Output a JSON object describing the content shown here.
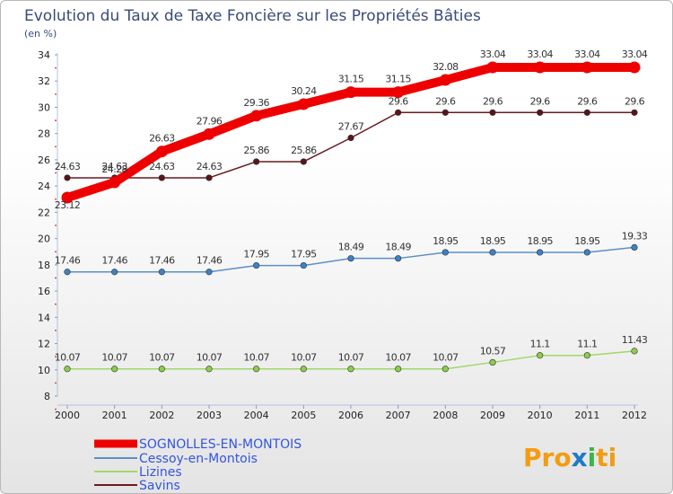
{
  "chart_data": {
    "type": "line",
    "title": "Evolution du Taux de Taxe Foncière sur les Propriétés Bâties",
    "subtitle": "(en %)",
    "x": [
      "2000",
      "2001",
      "2002",
      "2003",
      "2004",
      "2005",
      "2006",
      "2007",
      "2008",
      "2009",
      "2010",
      "2011",
      "2012"
    ],
    "ylim": [
      8,
      34
    ],
    "yticks": [
      8,
      10,
      12,
      14,
      16,
      18,
      20,
      22,
      24,
      26,
      28,
      30,
      32,
      34
    ],
    "grid": false,
    "legend_position": "bottom-left",
    "series": [
      {
        "name": "SOGNOLLES-EN-MONTOIS",
        "color": "#ee0000",
        "marker": "#ee0000",
        "text_color": "#3355dd",
        "values": [
          23.12,
          24.28,
          26.63,
          27.96,
          29.36,
          30.24,
          31.15,
          31.15,
          32.08,
          33.04,
          33.04,
          33.04,
          33.04
        ],
        "labels": [
          "23.12",
          "24.28",
          "26.63",
          "27.96",
          "29.36",
          "30.24",
          "31.15",
          "31.15",
          "32.08",
          "33.04",
          "33.04",
          "33.04",
          "33.04"
        ]
      },
      {
        "name": "Cessoy-en-Montois",
        "color": "#5b8fc7",
        "marker": "#3b82c6",
        "text_color": "#3355dd",
        "values": [
          17.46,
          17.46,
          17.46,
          17.46,
          17.95,
          17.95,
          18.49,
          18.49,
          18.95,
          18.95,
          18.95,
          18.95,
          19.33
        ],
        "labels": [
          "17.46",
          "17.46",
          "17.46",
          "17.46",
          "17.95",
          "17.95",
          "18.49",
          "18.49",
          "18.95",
          "18.95",
          "18.95",
          "18.95",
          "19.33"
        ]
      },
      {
        "name": "Lizines",
        "color": "#9fd86a",
        "marker": "#8ccd4a",
        "text_color": "#3355dd",
        "values": [
          10.07,
          10.07,
          10.07,
          10.07,
          10.07,
          10.07,
          10.07,
          10.07,
          10.07,
          10.57,
          11.1,
          11.1,
          11.43
        ],
        "labels": [
          "10.07",
          "10.07",
          "10.07",
          "10.07",
          "10.07",
          "10.07",
          "10.07",
          "10.07",
          "10.07",
          "10.57",
          "11.1",
          "11.1",
          "11.43"
        ]
      },
      {
        "name": "Savins",
        "color": "#6a1a22",
        "marker": "#5a1418",
        "text_color": "#3355dd",
        "values": [
          24.63,
          24.63,
          24.63,
          24.63,
          25.86,
          25.86,
          27.67,
          29.6,
          29.6,
          29.6,
          29.6,
          29.6,
          29.6
        ],
        "labels": [
          "24.63",
          "24.63",
          "24.63",
          "24.63",
          "25.86",
          "25.86",
          "27.67",
          "29.6",
          "29.6",
          "29.6",
          "29.6",
          "29.6",
          "29.6"
        ]
      }
    ]
  },
  "brand": {
    "logo_parts": [
      "Pro",
      "x",
      "i",
      "ti"
    ],
    "colors": [
      "#f39c12",
      "#1f7ac4",
      "#3cb44b",
      "#f39c12"
    ]
  }
}
